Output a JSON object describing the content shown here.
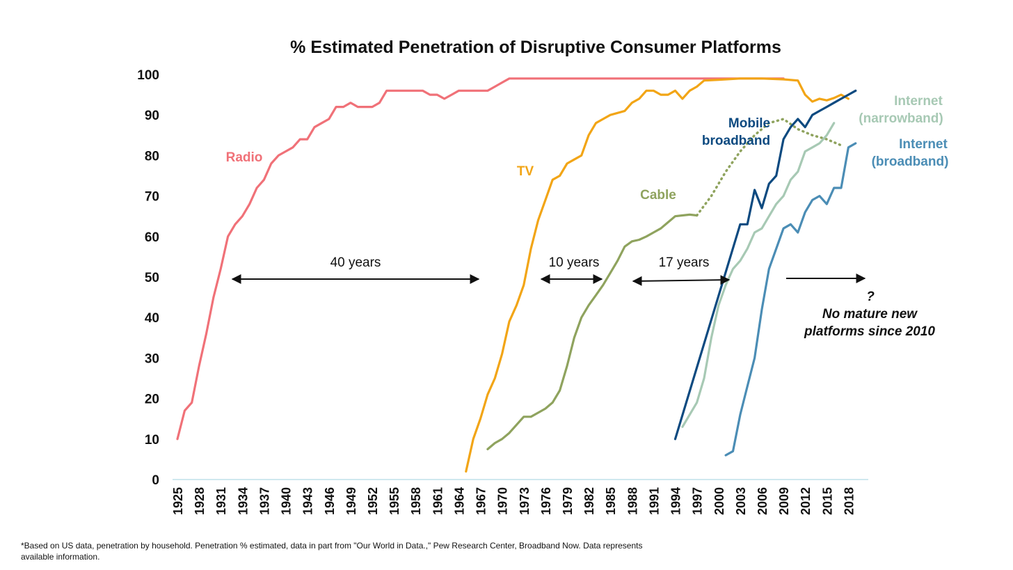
{
  "chart_data": {
    "type": "line",
    "title": "% Estimated Penetration of Disruptive Consumer Platforms",
    "xlabel": "",
    "ylabel": "",
    "xlim": [
      1925,
      2019
    ],
    "ylim": [
      0,
      100
    ],
    "grid": false,
    "legend": "inline labels",
    "y_ticks": [
      "0",
      "10",
      "20",
      "30",
      "40",
      "50",
      "60",
      "70",
      "80",
      "90",
      "100"
    ],
    "x_ticks": [
      "1925",
      "1928",
      "1931",
      "1934",
      "1937",
      "1940",
      "1943",
      "1946",
      "1949",
      "1952",
      "1955",
      "1958",
      "1961",
      "1964",
      "1967",
      "1970",
      "1973",
      "1976",
      "1979",
      "1982",
      "1985",
      "1988",
      "1991",
      "1994",
      "1997",
      "2000",
      "2003",
      "2006",
      "2009",
      "2012",
      "2015",
      "2018"
    ],
    "series": [
      {
        "name": "Radio",
        "color": "#f07178",
        "dashed": false,
        "points": [
          [
            1925,
            10
          ],
          [
            1926,
            17
          ],
          [
            1927,
            19
          ],
          [
            1928,
            28
          ],
          [
            1929,
            36
          ],
          [
            1930,
            45
          ],
          [
            1931,
            52
          ],
          [
            1932,
            60
          ],
          [
            1933,
            63
          ],
          [
            1934,
            65
          ],
          [
            1935,
            68
          ],
          [
            1936,
            72
          ],
          [
            1937,
            74
          ],
          [
            1938,
            78
          ],
          [
            1939,
            80
          ],
          [
            1940,
            81
          ],
          [
            1941,
            82
          ],
          [
            1942,
            84
          ],
          [
            1943,
            84
          ],
          [
            1944,
            87
          ],
          [
            1945,
            88
          ],
          [
            1946,
            89
          ],
          [
            1947,
            92
          ],
          [
            1948,
            92
          ],
          [
            1949,
            93
          ],
          [
            1950,
            92
          ],
          [
            1951,
            92
          ],
          [
            1952,
            92
          ],
          [
            1953,
            93
          ],
          [
            1954,
            96
          ],
          [
            1955,
            96
          ],
          [
            1956,
            96
          ],
          [
            1957,
            96
          ],
          [
            1958,
            96
          ],
          [
            1959,
            96
          ],
          [
            1960,
            95
          ],
          [
            1961,
            95
          ],
          [
            1962,
            94
          ],
          [
            1963,
            95
          ],
          [
            1964,
            96
          ],
          [
            1965,
            96
          ],
          [
            1966,
            96
          ],
          [
            1967,
            96
          ],
          [
            1968,
            96
          ],
          [
            1969,
            97
          ],
          [
            1970,
            98
          ],
          [
            1971,
            99
          ],
          [
            1972,
            99
          ],
          [
            1975,
            99
          ],
          [
            1980,
            99
          ],
          [
            1985,
            99
          ],
          [
            1990,
            99
          ],
          [
            1995,
            99
          ],
          [
            2000,
            99
          ],
          [
            2005,
            99
          ],
          [
            2009,
            99
          ]
        ]
      },
      {
        "name": "TV",
        "color": "#f2a516",
        "dashed": false,
        "points": [
          [
            1965,
            2
          ],
          [
            1966,
            10
          ],
          [
            1967,
            15
          ],
          [
            1968,
            21
          ],
          [
            1969,
            25
          ],
          [
            1970,
            31
          ],
          [
            1971,
            39
          ],
          [
            1972,
            43
          ],
          [
            1973,
            48
          ],
          [
            1974,
            57
          ],
          [
            1975,
            64
          ],
          [
            1976,
            69
          ],
          [
            1977,
            74
          ],
          [
            1978,
            75
          ],
          [
            1979,
            78
          ],
          [
            1980,
            79
          ],
          [
            1981,
            80
          ],
          [
            1982,
            85
          ],
          [
            1983,
            88
          ],
          [
            1984,
            89
          ],
          [
            1985,
            90
          ],
          [
            1986,
            90.5
          ],
          [
            1987,
            91
          ],
          [
            1988,
            93
          ],
          [
            1989,
            94
          ],
          [
            1990,
            96
          ],
          [
            1991,
            96
          ],
          [
            1992,
            95
          ],
          [
            1993,
            95
          ],
          [
            1994,
            96
          ],
          [
            1995,
            94
          ],
          [
            1996,
            96
          ],
          [
            1997,
            97
          ],
          [
            1998,
            98.5
          ],
          [
            2000,
            98.7
          ],
          [
            2003,
            99
          ],
          [
            2006,
            99
          ],
          [
            2009,
            98.8
          ],
          [
            2011,
            98.5
          ],
          [
            2012,
            95
          ],
          [
            2013,
            93.3
          ],
          [
            2014,
            94
          ],
          [
            2015,
            93.6
          ],
          [
            2016,
            94.2
          ],
          [
            2017,
            95
          ],
          [
            2018,
            94
          ]
        ]
      },
      {
        "name": "Cable",
        "color": "#8fa35e",
        "dashed": false,
        "points": [
          [
            1968,
            7.5
          ],
          [
            1969,
            9
          ],
          [
            1970,
            10
          ],
          [
            1971,
            11.5
          ],
          [
            1972,
            13.5
          ],
          [
            1973,
            15.5
          ],
          [
            1974,
            15.5
          ],
          [
            1975,
            16.5
          ],
          [
            1976,
            17.5
          ],
          [
            1977,
            19
          ],
          [
            1978,
            22
          ],
          [
            1979,
            28
          ],
          [
            1980,
            35
          ],
          [
            1981,
            40
          ],
          [
            1982,
            43
          ],
          [
            1983,
            45.5
          ],
          [
            1984,
            48
          ],
          [
            1985,
            51
          ],
          [
            1986,
            54
          ],
          [
            1987,
            57.5
          ],
          [
            1988,
            58.8
          ],
          [
            1989,
            59.2
          ],
          [
            1990,
            60
          ],
          [
            1991,
            61
          ],
          [
            1992,
            62
          ],
          [
            1993,
            63.5
          ],
          [
            1994,
            65
          ],
          [
            1995,
            65.2
          ],
          [
            1996,
            65.4
          ],
          [
            1997,
            65.2
          ]
        ]
      },
      {
        "name": "Cable (dotted)",
        "color": "#8fa35e",
        "dashed": true,
        "points": [
          [
            1997,
            65.2
          ],
          [
            1999,
            70
          ],
          [
            2001,
            76
          ],
          [
            2003,
            81
          ],
          [
            2005,
            85
          ],
          [
            2007,
            88
          ],
          [
            2009,
            89
          ],
          [
            2011,
            86.5
          ],
          [
            2013,
            85
          ],
          [
            2015,
            84
          ],
          [
            2017,
            82.5
          ]
        ]
      },
      {
        "name": "Mobile broadband",
        "color": "#0d4a80",
        "dashed": false,
        "points": [
          [
            1994,
            10
          ],
          [
            2003,
            63
          ],
          [
            2004,
            63
          ],
          [
            2005,
            71.5
          ],
          [
            2006,
            67
          ],
          [
            2007,
            73
          ],
          [
            2008,
            75
          ],
          [
            2009,
            84
          ],
          [
            2010,
            87
          ],
          [
            2011,
            89
          ],
          [
            2012,
            87
          ],
          [
            2013,
            90
          ],
          [
            2014,
            91
          ],
          [
            2015,
            92
          ],
          [
            2016,
            93
          ],
          [
            2017,
            94
          ],
          [
            2018,
            95
          ],
          [
            2019,
            96
          ]
        ]
      },
      {
        "name": "Internet (narrowband)",
        "color": "#a7c9b4",
        "dashed": false,
        "points": [
          [
            1995,
            13
          ],
          [
            1997,
            19
          ],
          [
            1998,
            25
          ],
          [
            1999,
            35
          ],
          [
            2000,
            43
          ],
          [
            2001,
            48
          ],
          [
            2002,
            52
          ],
          [
            2003,
            54
          ],
          [
            2004,
            57
          ],
          [
            2005,
            61
          ],
          [
            2006,
            62
          ],
          [
            2007,
            65
          ],
          [
            2008,
            68
          ],
          [
            2009,
            70
          ],
          [
            2010,
            74
          ],
          [
            2011,
            76
          ],
          [
            2012,
            81
          ],
          [
            2013,
            82
          ],
          [
            2014,
            83
          ],
          [
            2015,
            85
          ],
          [
            2016,
            88
          ]
        ]
      },
      {
        "name": "Internet (broadband)",
        "color": "#4b8db5",
        "dashed": false,
        "points": [
          [
            2001,
            6
          ],
          [
            2002,
            7
          ],
          [
            2003,
            16
          ],
          [
            2004,
            23
          ],
          [
            2005,
            30
          ],
          [
            2006,
            42
          ],
          [
            2007,
            52
          ],
          [
            2008,
            57
          ],
          [
            2009,
            62
          ],
          [
            2010,
            63
          ],
          [
            2011,
            61
          ],
          [
            2012,
            66
          ],
          [
            2013,
            69
          ],
          [
            2014,
            70
          ],
          [
            2015,
            68
          ],
          [
            2016,
            72
          ],
          [
            2017,
            72
          ],
          [
            2018,
            82
          ],
          [
            2019,
            83
          ]
        ]
      }
    ],
    "labels": {
      "radio": "Radio",
      "tv": "TV",
      "cable": "Cable",
      "mobile_line1": "Mobile",
      "mobile_line2": "broadband",
      "narrow_line1": "Internet",
      "narrow_line2": "(narrowband)",
      "broad_line1": "Internet",
      "broad_line2": "(broadband)"
    },
    "annotations": {
      "span1": "40 years",
      "span2": "10 years",
      "span3": "17 years",
      "question": "?",
      "note_line1": "No mature new",
      "note_line2": "platforms since 2010"
    }
  },
  "footnote": "*Based on US data, penetration by household. Penetration % estimated, data in part from \"Our World in Data.,\" Pew Research Center, Broadband Now. Data represents available information."
}
